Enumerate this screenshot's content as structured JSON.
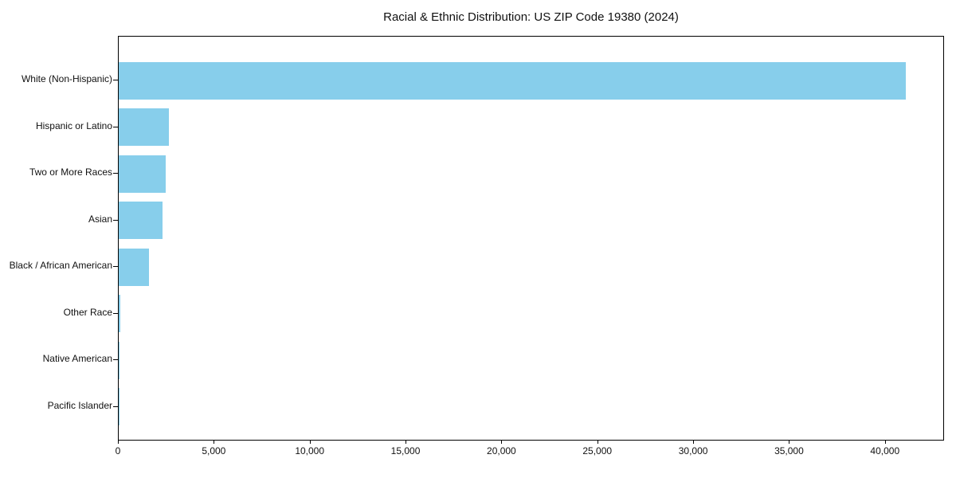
{
  "chart_data": {
    "type": "bar",
    "orientation": "horizontal",
    "title": "Racial & Ethnic Distribution: US ZIP Code 19380 (2024)",
    "categories": [
      "White (Non-Hispanic)",
      "Hispanic or Latino",
      "Two or More Races",
      "Asian",
      "Black / African American",
      "Other Race",
      "Native American",
      "Pacific Islander"
    ],
    "values": [
      41050,
      2600,
      2440,
      2300,
      1560,
      80,
      40,
      15
    ],
    "xlabel": "",
    "ylabel": "",
    "xlim": [
      0,
      43000
    ],
    "xticks": [
      0,
      5000,
      10000,
      15000,
      20000,
      25000,
      30000,
      35000,
      40000
    ],
    "xtick_labels": [
      "0",
      "5,000",
      "10,000",
      "15,000",
      "20,000",
      "25,000",
      "30,000",
      "35,000",
      "40,000"
    ],
    "bar_color": "#87CEEB",
    "axis_color": "#000000",
    "background_color": "#FFFFFF",
    "grid": false,
    "legend": null
  }
}
